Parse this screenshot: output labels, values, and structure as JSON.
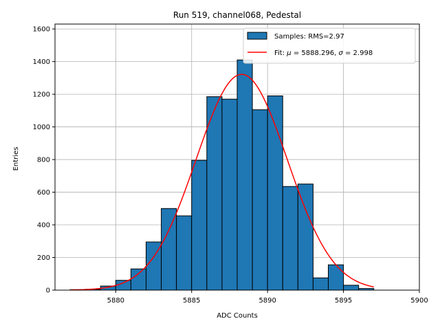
{
  "chart_data": {
    "type": "bar",
    "title": "Run 519, channel068, Pedestal",
    "xlabel": "ADC Counts",
    "ylabel": "Entries",
    "xlim": [
      5876,
      5900
    ],
    "ylim": [
      0,
      1630
    ],
    "xticks": [
      5880,
      5885,
      5890,
      5895,
      5900
    ],
    "yticks": [
      0,
      200,
      400,
      600,
      800,
      1000,
      1200,
      1400,
      1600
    ],
    "grid": true,
    "legend_position": "top-right",
    "bar_color": "#1f77b4",
    "fit_color": "#ff0000",
    "bin_width": 1,
    "bins": [
      {
        "x": 5877,
        "value": 3
      },
      {
        "x": 5878,
        "value": 5
      },
      {
        "x": 5879,
        "value": 25
      },
      {
        "x": 5880,
        "value": 60
      },
      {
        "x": 5881,
        "value": 130
      },
      {
        "x": 5882,
        "value": 295
      },
      {
        "x": 5883,
        "value": 500
      },
      {
        "x": 5884,
        "value": 455
      },
      {
        "x": 5885,
        "value": 795
      },
      {
        "x": 5886,
        "value": 1185
      },
      {
        "x": 5887,
        "value": 1170
      },
      {
        "x": 5888,
        "value": 1410
      },
      {
        "x": 5889,
        "value": 1105
      },
      {
        "x": 5890,
        "value": 1190
      },
      {
        "x": 5891,
        "value": 635
      },
      {
        "x": 5892,
        "value": 650
      },
      {
        "x": 5893,
        "value": 75
      },
      {
        "x": 5894,
        "value": 155
      },
      {
        "x": 5895,
        "value": 30
      },
      {
        "x": 5896,
        "value": 10
      }
    ],
    "fit": {
      "mu": 5888.296,
      "sigma": 2.998,
      "amplitude": 1322,
      "x_range": [
        5877,
        5897
      ]
    },
    "legend": {
      "samples_label": "Samples: RMS=2.97",
      "fit_prefix": "Fit: ",
      "mu_symbol": "μ",
      "mu_text": " = 5888.296, ",
      "sigma_symbol": "σ",
      "sigma_text": " = 2.998"
    }
  }
}
